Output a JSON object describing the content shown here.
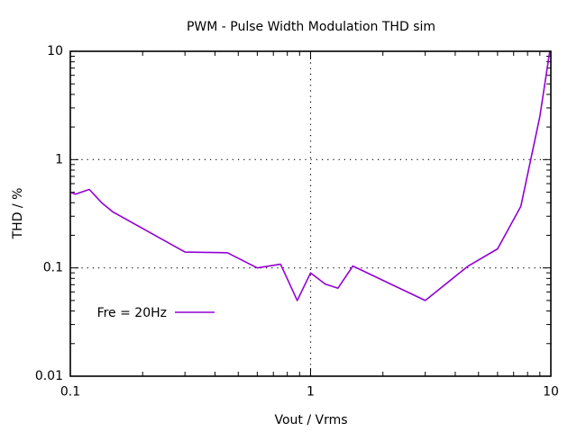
{
  "chart_data": {
    "type": "line",
    "title": "PWM - Pulse Width Modulation THD sim",
    "xlabel": "Vout / Vrms",
    "ylabel": "THD / %",
    "xscale": "log",
    "yscale": "log",
    "xlim": [
      0.1,
      10
    ],
    "ylim": [
      0.01,
      10
    ],
    "x_ticks": [
      0.1,
      1,
      10
    ],
    "x_tick_labels": [
      "0.1",
      "1",
      "10"
    ],
    "y_ticks": [
      0.01,
      0.1,
      1,
      10
    ],
    "y_tick_labels": [
      "0.01",
      "0.1",
      "1",
      "10"
    ],
    "grid": true,
    "legend_position": "bottom-left",
    "series": [
      {
        "name": "Fre = 20Hz",
        "color": "#9400d3",
        "x": [
          0.1,
          0.105,
          0.12,
          0.135,
          0.15,
          0.3,
          0.45,
          0.6,
          0.75,
          0.88,
          1.0,
          1.15,
          1.3,
          1.5,
          3.0,
          4.5,
          6.0,
          7.5,
          9.0,
          9.9
        ],
        "y": [
          0.5,
          0.48,
          0.53,
          0.4,
          0.33,
          0.14,
          0.138,
          0.1,
          0.108,
          0.05,
          0.09,
          0.071,
          0.065,
          0.104,
          0.05,
          0.103,
          0.15,
          0.37,
          2.5,
          10
        ]
      }
    ]
  }
}
